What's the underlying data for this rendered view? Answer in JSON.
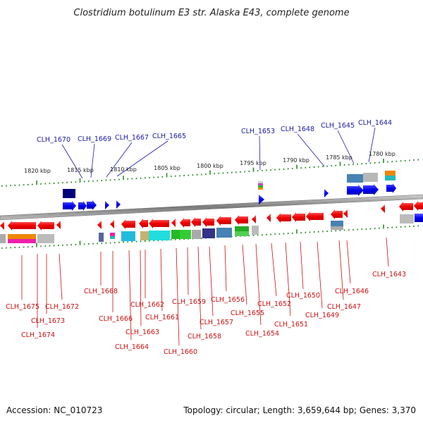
{
  "title": "Clostridium botulinum E3 str. Alaska E43, complete genome",
  "footer": {
    "accession": "Accession: NC_010723",
    "summary": "Topology: circular; Length: 3,659,644 bp; Genes: 3,370"
  },
  "colors": {
    "backbone": "#8a8a8a",
    "tick": "#2a8a2a",
    "forward_gene": "#0000ee",
    "reverse_gene": "#ee0000",
    "top_label": "#1a1aa6",
    "bottom_label": "#cc1010"
  },
  "scale": {
    "labels": [
      "1820 kbp",
      "1815 kbp",
      "1810 kbp",
      "1805 kbp",
      "1800 kbp",
      "1795 kbp",
      "1790 kbp",
      "1785 kbp",
      "1780 kbp"
    ]
  },
  "top_genes": [
    "CLH_1670",
    "CLH_1669",
    "CLH_1667",
    "CLH_1665",
    "CLH_1653",
    "CLH_1648",
    "CLH_1645",
    "CLH_1644"
  ],
  "bottom_genes": [
    "CLH_1675",
    "CLH_1674",
    "CLH_1673",
    "CLH_1672",
    "CLH_1668",
    "CLH_1666",
    "CLH_1664",
    "CLH_1663",
    "CLH_1662",
    "CLH_1661",
    "CLH_1660",
    "CLH_1659",
    "CLH_1658",
    "CLH_1657",
    "CLH_1656",
    "CLH_1655",
    "CLH_1654",
    "CLH_1652",
    "CLH_1651",
    "CLH_1650",
    "CLH_1649",
    "CLH_1647",
    "CLH_1646",
    "CLH_1643"
  ]
}
